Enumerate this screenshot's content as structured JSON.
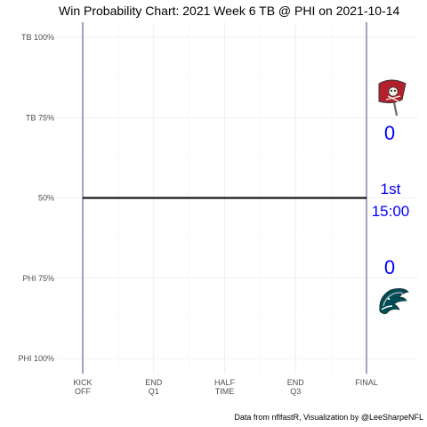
{
  "chart_data": {
    "type": "line",
    "title": "Win Probability Chart: 2021 Week 6 TB @ PHI on 2021-10-14",
    "ylabel": "",
    "xlabel": "",
    "y_ticks": [
      {
        "value": 100,
        "label": "TB 100%"
      },
      {
        "value": 75,
        "label": "TB 75%"
      },
      {
        "value": 50,
        "label": "50%"
      },
      {
        "value": 25,
        "label": "PHI 75%"
      },
      {
        "value": 0,
        "label": "PHI 100%"
      }
    ],
    "x_ticks": [
      {
        "value": 0,
        "label": "KICK\nOFF"
      },
      {
        "value": 15,
        "label": "END\nQ1"
      },
      {
        "value": 30,
        "label": "HALF\nTIME"
      },
      {
        "value": 45,
        "label": "END\nQ3"
      },
      {
        "value": 60,
        "label": "FINAL"
      }
    ],
    "xlim": [
      0,
      60
    ],
    "ylim": [
      0,
      100
    ],
    "grid": true,
    "series": [
      {
        "x": [
          0,
          60
        ],
        "values": [
          50,
          50
        ],
        "color": "#000000"
      }
    ],
    "vlines": [
      0,
      60
    ],
    "vline_color": "#1a1a7a",
    "scoreboard": {
      "home_team_top": "TB",
      "top_score": "0",
      "bottom_score": "0",
      "quarter": "1st",
      "clock": "15:00",
      "color": "#0000ff"
    },
    "logos": {
      "top": "buccaneers-flag-logo",
      "bottom": "eagles-head-logo"
    },
    "caption": "Data from nflfastR, Visualization by @LeeSharpeNFL"
  }
}
